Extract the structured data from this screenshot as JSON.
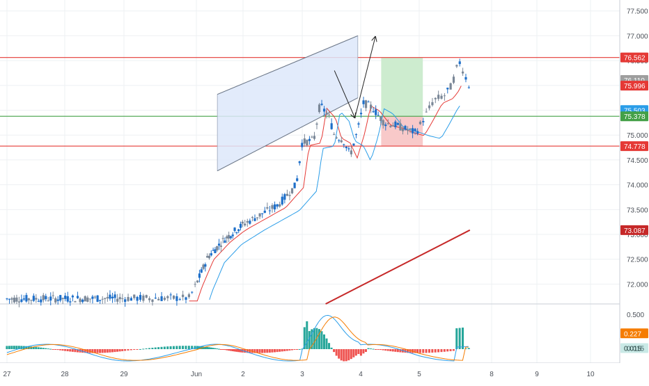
{
  "colors": {
    "up": "#1e6fc9",
    "down": "#7a8797",
    "level_red": "#e53935",
    "level_green": "#2e7d32",
    "ema_fast": "#e53935",
    "ema_slow": "#2a9de8",
    "ma_long": "#c62828",
    "channel_fill": "#dde8fa",
    "target_fill": "#cdeccf",
    "stop_fill": "#f8c9c9",
    "macd_line": "#2a9de8",
    "signal_line": "#f57c00",
    "hist_up": "#26a69a",
    "hist_up_fade": "#b2dfdb",
    "hist_down": "#ef5350",
    "hist_down_fade": "#f8c4c4"
  },
  "chart_data": {
    "type": "candlestick",
    "title": "",
    "x_axis": {
      "tick_labels": [
        "27",
        "28",
        "29",
        "Jun",
        "2",
        "3",
        "4",
        "5",
        "8",
        "9",
        "10"
      ]
    },
    "y_axis": {
      "ylim": [
        71.6,
        77.72
      ],
      "tick_labels": [
        "77.500",
        "77.000",
        "76.500",
        "76.000",
        "75.500",
        "75.000",
        "74.500",
        "74.000",
        "73.500",
        "73.000",
        "72.500",
        "72.000"
      ],
      "tick_values": [
        77.5,
        77.0,
        76.5,
        76.0,
        75.5,
        75.0,
        74.5,
        74.0,
        73.5,
        73.0,
        72.5,
        72.0
      ]
    },
    "price_badges": [
      {
        "label": "76.562",
        "value": 76.562,
        "color": "#e53935"
      },
      {
        "label": "76.110",
        "value": 76.11,
        "color": "#9e9e9e"
      },
      {
        "label": "75.996",
        "value": 75.996,
        "color": "#e53935"
      },
      {
        "label": "75.503",
        "value": 75.503,
        "color": "#2a9de8"
      },
      {
        "label": "75.378",
        "value": 75.378,
        "color": "#43a047"
      },
      {
        "label": "74.778",
        "value": 74.778,
        "color": "#e53935"
      },
      {
        "label": "73.087",
        "value": 73.087,
        "color": "#c62828"
      }
    ],
    "horizontal_levels": [
      {
        "value": 76.562,
        "role": "resistance",
        "color": "#e53935"
      },
      {
        "value": 75.378,
        "role": "entry",
        "color": "#43a047"
      },
      {
        "value": 74.778,
        "role": "support",
        "color": "#e53935"
      }
    ],
    "channel": {
      "start_day": 3.45,
      "end_day": 5.95,
      "upper": [
        75.82,
        77.0
      ],
      "lower": [
        74.28,
        75.75
      ]
    },
    "projection_path": [
      [
        5.55,
        76.3
      ],
      [
        5.9,
        75.35
      ],
      [
        6.25,
        76.98
      ]
    ],
    "position": {
      "entry": 75.378,
      "target": 76.562,
      "stop": 74.778,
      "start_day": 6.35,
      "end_day": 7.05
    },
    "macd": {
      "ylim": [
        -0.2,
        0.65
      ],
      "tick_labels": [
        "0.500",
        "0.227",
        "0.015"
      ],
      "tick_values": [
        0.5,
        0.227,
        0.015
      ],
      "badges": [
        {
          "label": "0.227",
          "value": 0.227,
          "color": "#f57c00"
        },
        {
          "label": "0.015",
          "value": 0.015,
          "color": "#26a69a"
        }
      ]
    }
  }
}
